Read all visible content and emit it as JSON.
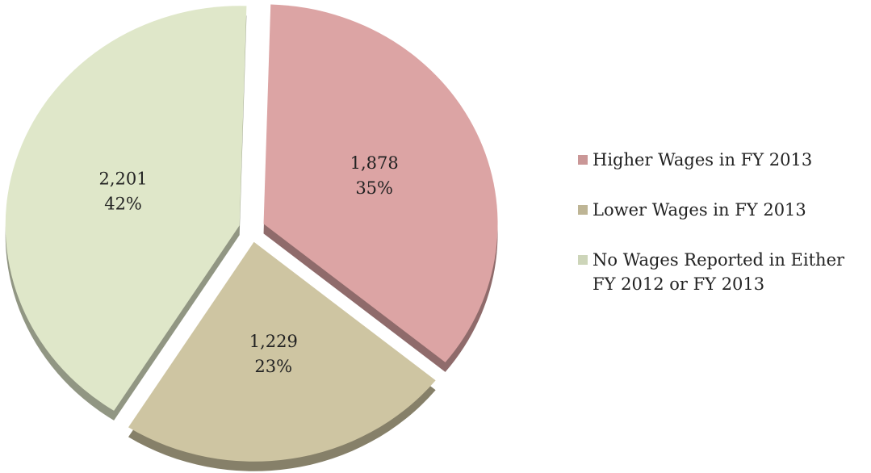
{
  "chart_data": {
    "type": "pie",
    "categories": [
      "Higher Wages in FY 2013",
      "Lower Wages in FY 2013",
      "No Wages Reported in Either FY 2012 or FY 2013"
    ],
    "values": [
      1878,
      1229,
      2201
    ],
    "value_labels": [
      "1,878",
      "1,229",
      "2,201"
    ],
    "percents": [
      35,
      23,
      42
    ],
    "percent_labels": [
      "35%",
      "23%",
      "42%"
    ],
    "colors": [
      "#dca4a4",
      "#cec5a2",
      "#dfe7c9"
    ],
    "legend": "right"
  }
}
